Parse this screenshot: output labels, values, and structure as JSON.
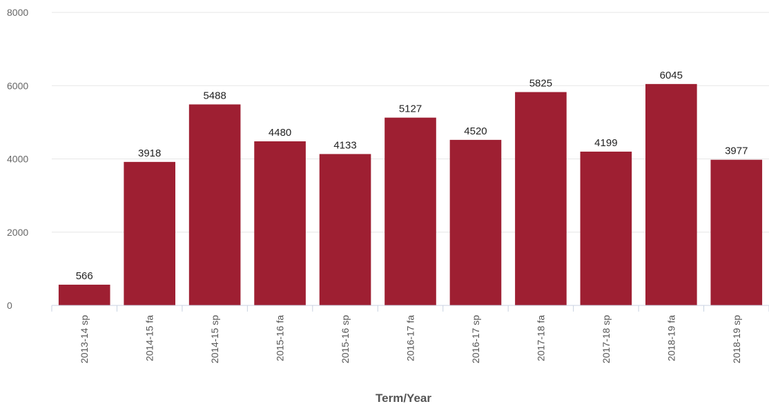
{
  "chart_data": {
    "type": "bar",
    "title": "",
    "xlabel": "Term/Year",
    "ylabel": "",
    "ylim": [
      0,
      8000
    ],
    "yticks": [
      0,
      2000,
      4000,
      6000,
      8000
    ],
    "grid": true,
    "legend": "none",
    "bar_color": "#9e1f32",
    "categories": [
      "2013-14 sp",
      "2014-15 fa",
      "2014-15 sp",
      "2015-16 fa",
      "2015-16 sp",
      "2016-17 fa",
      "2016-17 sp",
      "2017-18 fa",
      "2017-18 sp",
      "2018-19 fa",
      "2018-19 sp"
    ],
    "values": [
      566,
      3918,
      5488,
      4480,
      4133,
      5127,
      4520,
      5825,
      4199,
      6045,
      3977
    ]
  }
}
